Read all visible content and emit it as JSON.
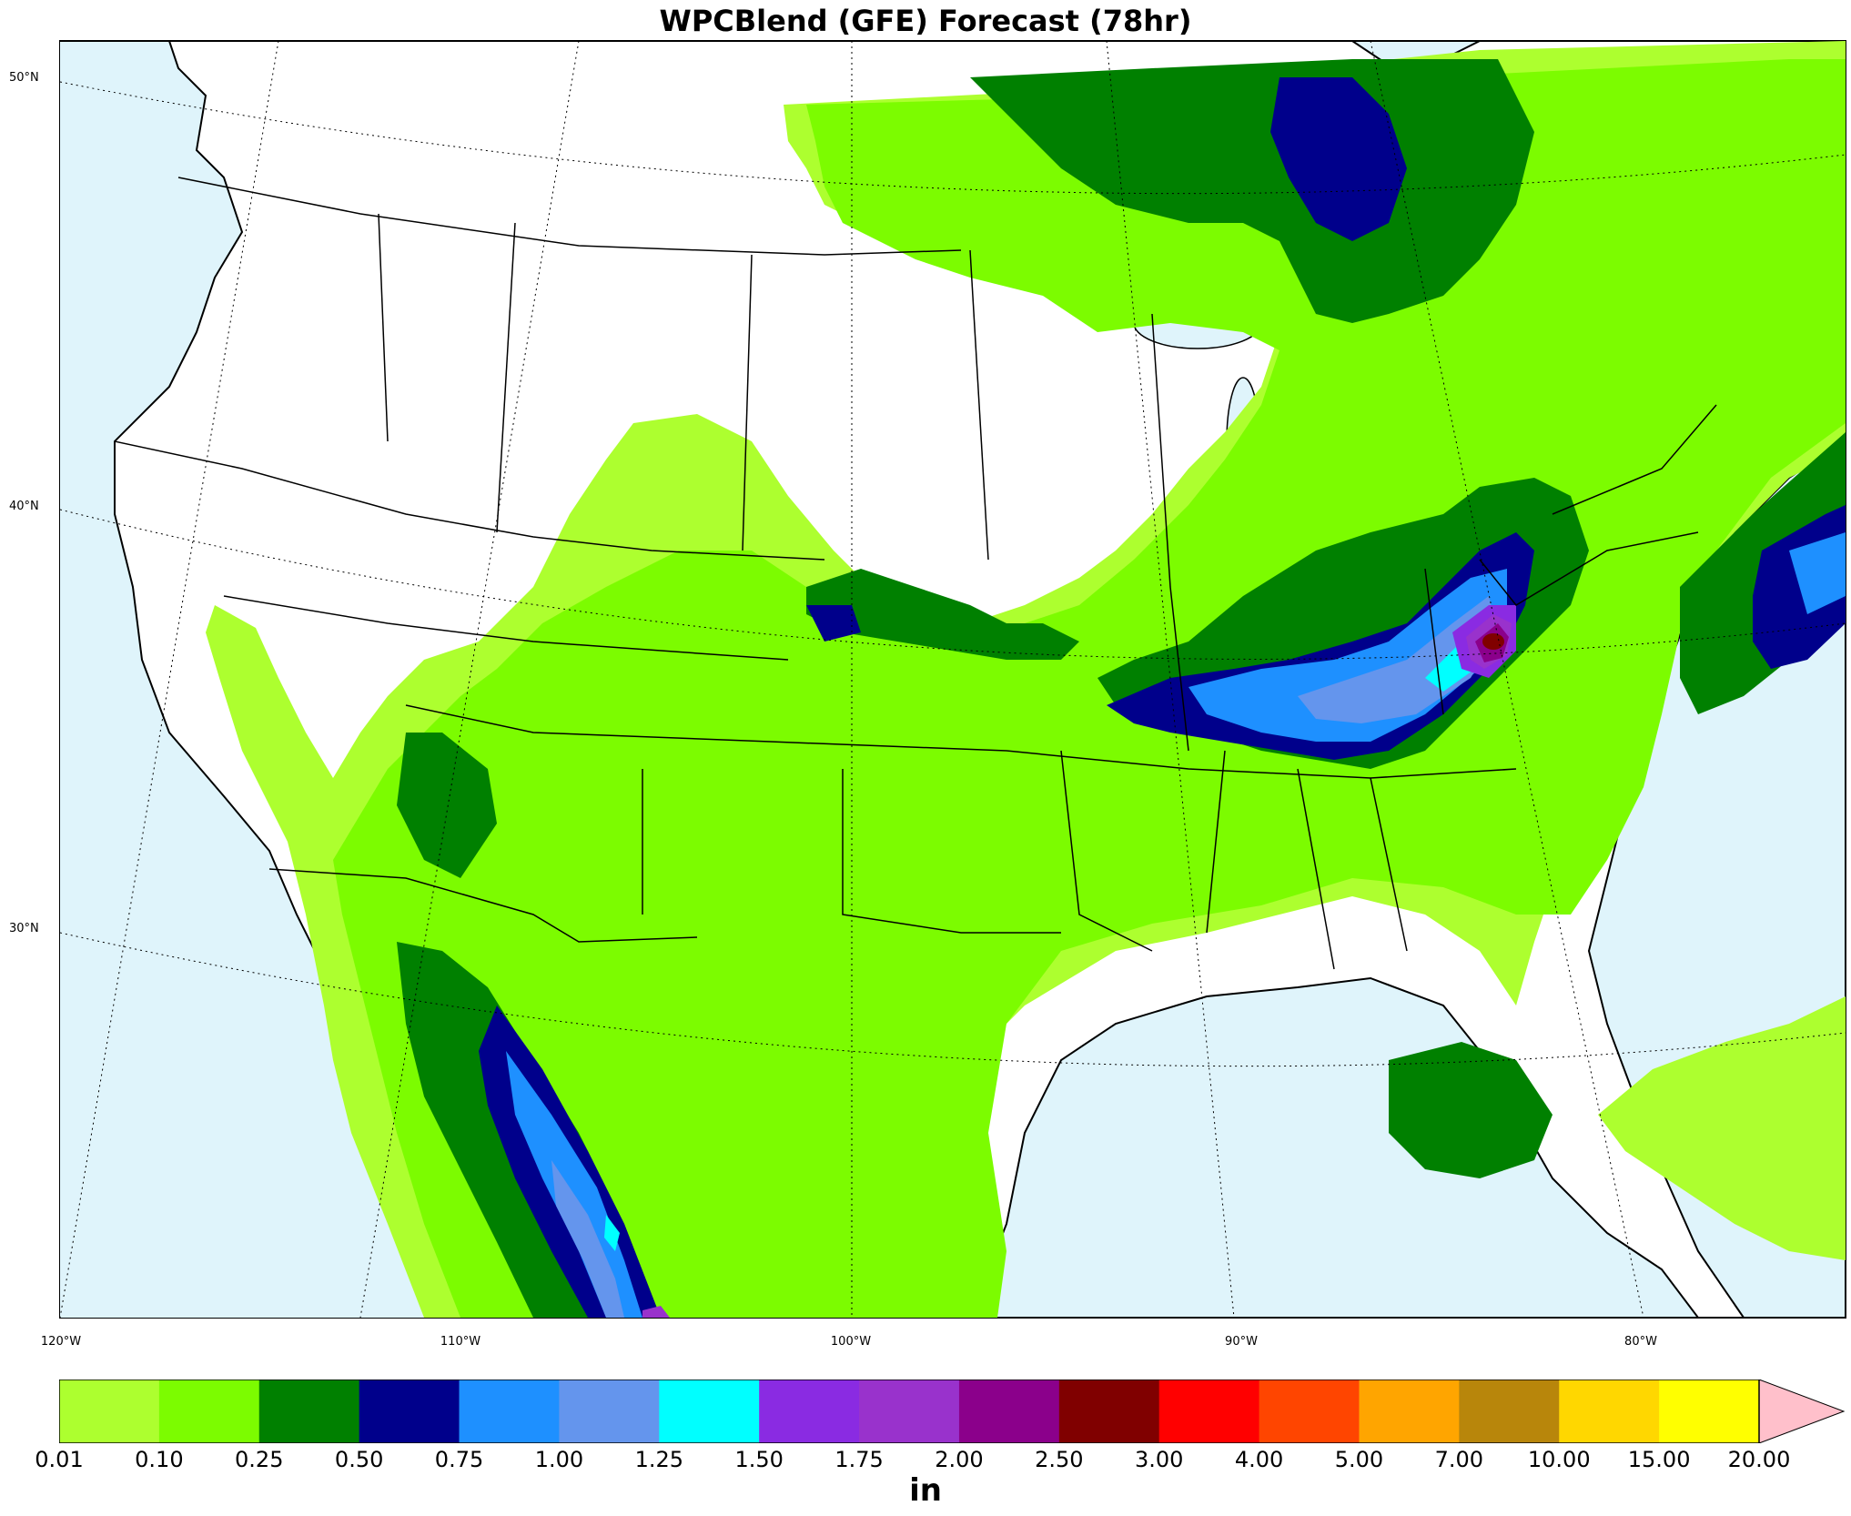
{
  "title": "WPCBlend (GFE) Forecast (78hr)",
  "latitude_labels": [
    "50°N",
    "40°N",
    "30°N"
  ],
  "longitude_labels": [
    "120°W",
    "110°W",
    "100°W",
    "90°W",
    "80°W"
  ],
  "colorbar": {
    "units": "in",
    "ticks": [
      "0.01",
      "0.10",
      "0.25",
      "0.50",
      "0.75",
      "1.00",
      "1.25",
      "1.50",
      "1.75",
      "2.00",
      "2.50",
      "3.00",
      "4.00",
      "5.00",
      "7.00",
      "10.00",
      "15.00",
      "20.00"
    ],
    "colors": [
      "#adff2f",
      "#7cfc00",
      "#008000",
      "#00008b",
      "#1e90ff",
      "#6495ed",
      "#00ffff",
      "#8a2be2",
      "#9932cc",
      "#8b008b",
      "#800000",
      "#ff0000",
      "#ff4500",
      "#ffa500",
      "#b8860b",
      "#ffd700",
      "#ffff00"
    ],
    "extend_color": "#ffc0cb"
  },
  "colors": {
    "ocean": "#dff4fb",
    "land": "#ffffff"
  }
}
